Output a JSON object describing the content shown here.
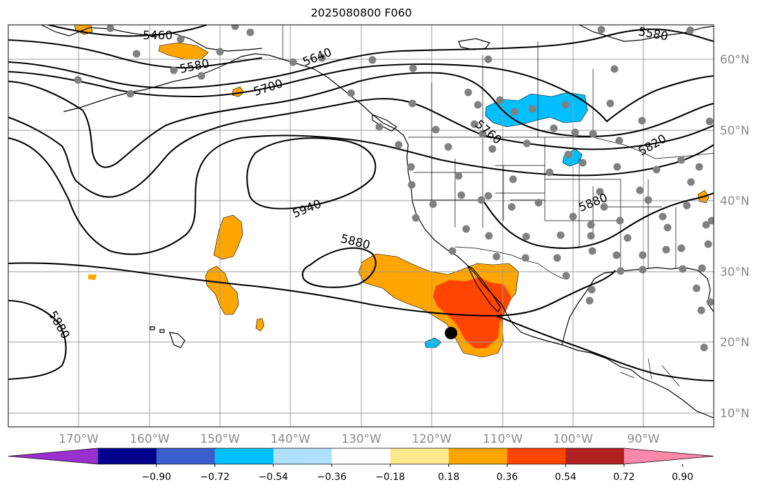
{
  "title": "2025080800 F060",
  "lat_labels": [
    "60°N",
    "50°N",
    "40°N",
    "30°N",
    "20°N",
    "10°N"
  ],
  "lon_labels": [
    "170°W",
    "160°W",
    "150°W",
    "140°W",
    "130°W",
    "120°W",
    "110°W",
    "100°W",
    "90°W"
  ],
  "contour_labels": [
    "5460",
    "5580",
    "5580",
    "5640",
    "5700",
    "5760",
    "5820",
    "5880",
    "5880",
    "5880",
    "5940"
  ],
  "colorbar": {
    "ticks": [
      "−0.90",
      "−0.72",
      "−0.54",
      "−0.36",
      "−0.18",
      "0.18",
      "0.36",
      "0.54",
      "0.72",
      "0.90"
    ],
    "colors": [
      "#9b30d0",
      "#00008b",
      "#3a5fcd",
      "#00bfff",
      "#b0e0ff",
      "#ffffff",
      "#ffe98c",
      "#ffa500",
      "#ff4500",
      "#b22222",
      "#ff88aa"
    ]
  },
  "colors": {
    "positive_shade": "#ffa500",
    "strong_positive_shade": "#ff4500",
    "negative_shade": "#00bfff",
    "station_marker": "#808080"
  }
}
